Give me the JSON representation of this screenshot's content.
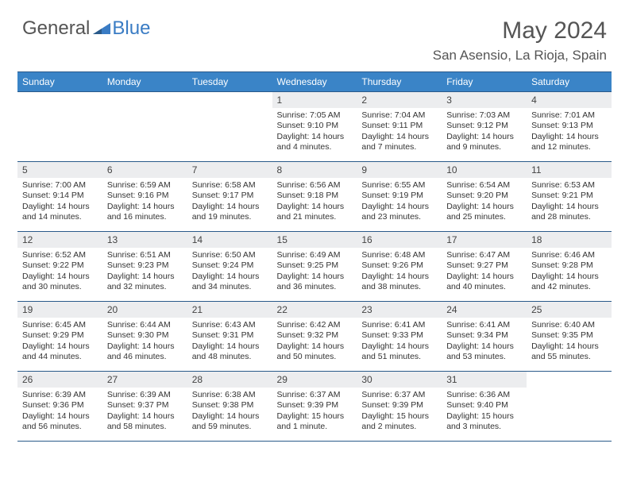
{
  "logo": {
    "text1": "General",
    "text2": "Blue"
  },
  "title": "May 2024",
  "location": "San Asensio, La Rioja, Spain",
  "colors": {
    "header_bg": "#3a84c7",
    "header_border": "#2a5a8a",
    "daynum_bg": "#ecedef",
    "text_dark": "#555555",
    "blue": "#3a7cc4"
  },
  "dayNames": [
    "Sunday",
    "Monday",
    "Tuesday",
    "Wednesday",
    "Thursday",
    "Friday",
    "Saturday"
  ],
  "weeks": [
    [
      {
        "n": "",
        "sr": "",
        "ss": "",
        "dl": ""
      },
      {
        "n": "",
        "sr": "",
        "ss": "",
        "dl": ""
      },
      {
        "n": "",
        "sr": "",
        "ss": "",
        "dl": ""
      },
      {
        "n": "1",
        "sr": "Sunrise: 7:05 AM",
        "ss": "Sunset: 9:10 PM",
        "dl": "Daylight: 14 hours and 4 minutes."
      },
      {
        "n": "2",
        "sr": "Sunrise: 7:04 AM",
        "ss": "Sunset: 9:11 PM",
        "dl": "Daylight: 14 hours and 7 minutes."
      },
      {
        "n": "3",
        "sr": "Sunrise: 7:03 AM",
        "ss": "Sunset: 9:12 PM",
        "dl": "Daylight: 14 hours and 9 minutes."
      },
      {
        "n": "4",
        "sr": "Sunrise: 7:01 AM",
        "ss": "Sunset: 9:13 PM",
        "dl": "Daylight: 14 hours and 12 minutes."
      }
    ],
    [
      {
        "n": "5",
        "sr": "Sunrise: 7:00 AM",
        "ss": "Sunset: 9:14 PM",
        "dl": "Daylight: 14 hours and 14 minutes."
      },
      {
        "n": "6",
        "sr": "Sunrise: 6:59 AM",
        "ss": "Sunset: 9:16 PM",
        "dl": "Daylight: 14 hours and 16 minutes."
      },
      {
        "n": "7",
        "sr": "Sunrise: 6:58 AM",
        "ss": "Sunset: 9:17 PM",
        "dl": "Daylight: 14 hours and 19 minutes."
      },
      {
        "n": "8",
        "sr": "Sunrise: 6:56 AM",
        "ss": "Sunset: 9:18 PM",
        "dl": "Daylight: 14 hours and 21 minutes."
      },
      {
        "n": "9",
        "sr": "Sunrise: 6:55 AM",
        "ss": "Sunset: 9:19 PM",
        "dl": "Daylight: 14 hours and 23 minutes."
      },
      {
        "n": "10",
        "sr": "Sunrise: 6:54 AM",
        "ss": "Sunset: 9:20 PM",
        "dl": "Daylight: 14 hours and 25 minutes."
      },
      {
        "n": "11",
        "sr": "Sunrise: 6:53 AM",
        "ss": "Sunset: 9:21 PM",
        "dl": "Daylight: 14 hours and 28 minutes."
      }
    ],
    [
      {
        "n": "12",
        "sr": "Sunrise: 6:52 AM",
        "ss": "Sunset: 9:22 PM",
        "dl": "Daylight: 14 hours and 30 minutes."
      },
      {
        "n": "13",
        "sr": "Sunrise: 6:51 AM",
        "ss": "Sunset: 9:23 PM",
        "dl": "Daylight: 14 hours and 32 minutes."
      },
      {
        "n": "14",
        "sr": "Sunrise: 6:50 AM",
        "ss": "Sunset: 9:24 PM",
        "dl": "Daylight: 14 hours and 34 minutes."
      },
      {
        "n": "15",
        "sr": "Sunrise: 6:49 AM",
        "ss": "Sunset: 9:25 PM",
        "dl": "Daylight: 14 hours and 36 minutes."
      },
      {
        "n": "16",
        "sr": "Sunrise: 6:48 AM",
        "ss": "Sunset: 9:26 PM",
        "dl": "Daylight: 14 hours and 38 minutes."
      },
      {
        "n": "17",
        "sr": "Sunrise: 6:47 AM",
        "ss": "Sunset: 9:27 PM",
        "dl": "Daylight: 14 hours and 40 minutes."
      },
      {
        "n": "18",
        "sr": "Sunrise: 6:46 AM",
        "ss": "Sunset: 9:28 PM",
        "dl": "Daylight: 14 hours and 42 minutes."
      }
    ],
    [
      {
        "n": "19",
        "sr": "Sunrise: 6:45 AM",
        "ss": "Sunset: 9:29 PM",
        "dl": "Daylight: 14 hours and 44 minutes."
      },
      {
        "n": "20",
        "sr": "Sunrise: 6:44 AM",
        "ss": "Sunset: 9:30 PM",
        "dl": "Daylight: 14 hours and 46 minutes."
      },
      {
        "n": "21",
        "sr": "Sunrise: 6:43 AM",
        "ss": "Sunset: 9:31 PM",
        "dl": "Daylight: 14 hours and 48 minutes."
      },
      {
        "n": "22",
        "sr": "Sunrise: 6:42 AM",
        "ss": "Sunset: 9:32 PM",
        "dl": "Daylight: 14 hours and 50 minutes."
      },
      {
        "n": "23",
        "sr": "Sunrise: 6:41 AM",
        "ss": "Sunset: 9:33 PM",
        "dl": "Daylight: 14 hours and 51 minutes."
      },
      {
        "n": "24",
        "sr": "Sunrise: 6:41 AM",
        "ss": "Sunset: 9:34 PM",
        "dl": "Daylight: 14 hours and 53 minutes."
      },
      {
        "n": "25",
        "sr": "Sunrise: 6:40 AM",
        "ss": "Sunset: 9:35 PM",
        "dl": "Daylight: 14 hours and 55 minutes."
      }
    ],
    [
      {
        "n": "26",
        "sr": "Sunrise: 6:39 AM",
        "ss": "Sunset: 9:36 PM",
        "dl": "Daylight: 14 hours and 56 minutes."
      },
      {
        "n": "27",
        "sr": "Sunrise: 6:39 AM",
        "ss": "Sunset: 9:37 PM",
        "dl": "Daylight: 14 hours and 58 minutes."
      },
      {
        "n": "28",
        "sr": "Sunrise: 6:38 AM",
        "ss": "Sunset: 9:38 PM",
        "dl": "Daylight: 14 hours and 59 minutes."
      },
      {
        "n": "29",
        "sr": "Sunrise: 6:37 AM",
        "ss": "Sunset: 9:39 PM",
        "dl": "Daylight: 15 hours and 1 minute."
      },
      {
        "n": "30",
        "sr": "Sunrise: 6:37 AM",
        "ss": "Sunset: 9:39 PM",
        "dl": "Daylight: 15 hours and 2 minutes."
      },
      {
        "n": "31",
        "sr": "Sunrise: 6:36 AM",
        "ss": "Sunset: 9:40 PM",
        "dl": "Daylight: 15 hours and 3 minutes."
      },
      {
        "n": "",
        "sr": "",
        "ss": "",
        "dl": ""
      }
    ]
  ]
}
